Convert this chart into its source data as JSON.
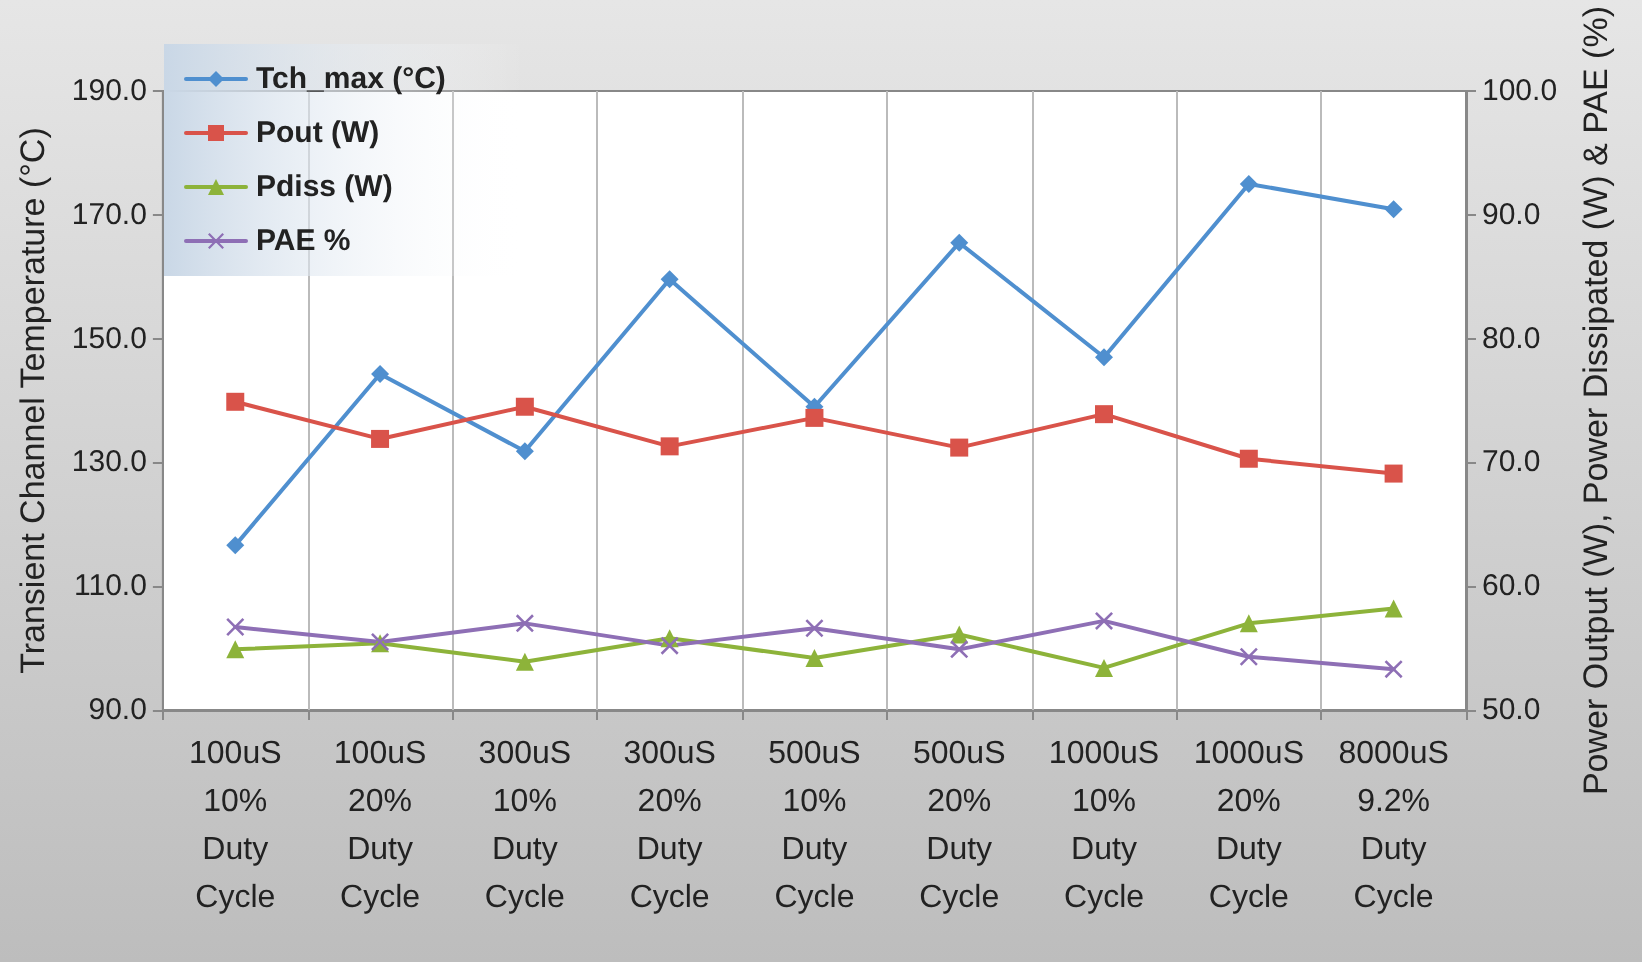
{
  "chart_data": {
    "type": "line",
    "ylabel": "Transient Channel Temperature (°C)",
    "y2label": "Power Output (W), Power Dissipated (W) & PAE (%)",
    "categories": [
      "100uS\n10%\nDuty\nCycle",
      "100uS\n20%\nDuty\nCycle",
      "300uS\n10%\nDuty\nCycle",
      "300uS\n20%\nDuty\nCycle",
      "500uS\n10%\nDuty\nCycle",
      "500uS\n20%\nDuty\nCycle",
      "1000uS\n10%\nDuty\nCycle",
      "1000uS\n20%\nDuty\nCycle",
      "8000uS\n9.2%\nDuty\nCycle"
    ],
    "series": [
      {
        "name": "Tch_max (°C)",
        "color": "#4f8fcf",
        "marker": "diamond",
        "values": [
          116.6,
          144.3,
          131.8,
          159.6,
          139,
          165.5,
          147,
          175,
          170.9
        ]
      },
      {
        "name": "Pout (W)",
        "color": "#d9534a",
        "marker": "square",
        "axis": "y2",
        "values": [
          74.9,
          71.9,
          74.5,
          71.3,
          73.6,
          71.2,
          73.9,
          70.3,
          69.1
        ]
      },
      {
        "name": "Pdiss (W)",
        "color": "#8db33a",
        "marker": "triangle",
        "axis": "y2",
        "values": [
          54.9,
          55.4,
          53.9,
          55.8,
          54.2,
          56.1,
          53.4,
          57.0,
          58.2
        ]
      },
      {
        "name": "PAE %",
        "color": "#8e6fb5",
        "marker": "cross",
        "axis": "y2",
        "values": [
          56.7,
          55.5,
          57.0,
          55.2,
          56.6,
          54.9,
          57.2,
          54.3,
          53.3
        ]
      }
    ],
    "ylim": [
      90,
      190
    ],
    "yticks": [
      {
        "value": 90,
        "label": "90.0"
      },
      {
        "value": 110,
        "label": "110.0"
      },
      {
        "value": 130,
        "label": "130.0"
      },
      {
        "value": 150,
        "label": "150.0"
      },
      {
        "value": 170,
        "label": "170.0"
      },
      {
        "value": 190,
        "label": "190.0"
      }
    ],
    "y2lim": [
      50,
      100
    ],
    "y2ticks": [
      {
        "value": 50,
        "label": "50.0"
      },
      {
        "value": 60,
        "label": "60.0"
      },
      {
        "value": 70,
        "label": "70.0"
      },
      {
        "value": 80,
        "label": "80.0"
      },
      {
        "value": 90,
        "label": "90.0"
      },
      {
        "value": 100,
        "label": "100.0"
      }
    ],
    "grid": "x",
    "legend": "top left",
    "line_style": "solid"
  }
}
